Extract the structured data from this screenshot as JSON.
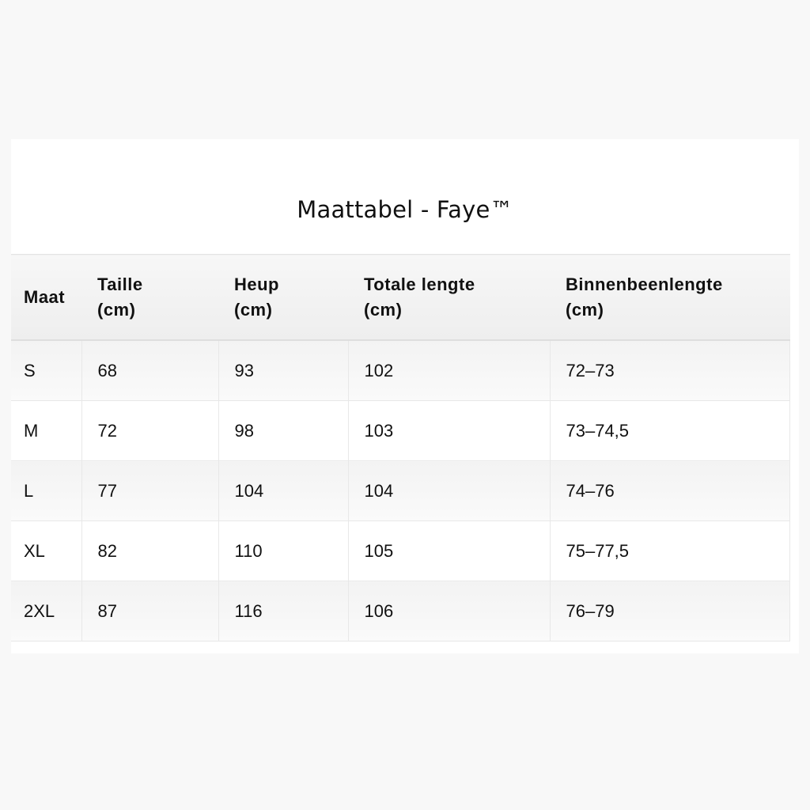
{
  "title": "Maattabel - Faye™",
  "table": {
    "headers": [
      [
        "Maat"
      ],
      [
        "Taille",
        "(cm)"
      ],
      [
        "Heup",
        "(cm)"
      ],
      [
        "Totale lengte",
        "(cm)"
      ],
      [
        "Binnenbeenlengte",
        "(cm)"
      ]
    ],
    "rows": [
      [
        "S",
        "68",
        "93",
        "102",
        "72–73"
      ],
      [
        "M",
        "72",
        "98",
        "103",
        "73–74,5"
      ],
      [
        "L",
        "77",
        "104",
        "104",
        "74–76"
      ],
      [
        "XL",
        "82",
        "110",
        "105",
        "75–77,5"
      ],
      [
        "2XL",
        "87",
        "116",
        "106",
        "76–79"
      ]
    ]
  }
}
